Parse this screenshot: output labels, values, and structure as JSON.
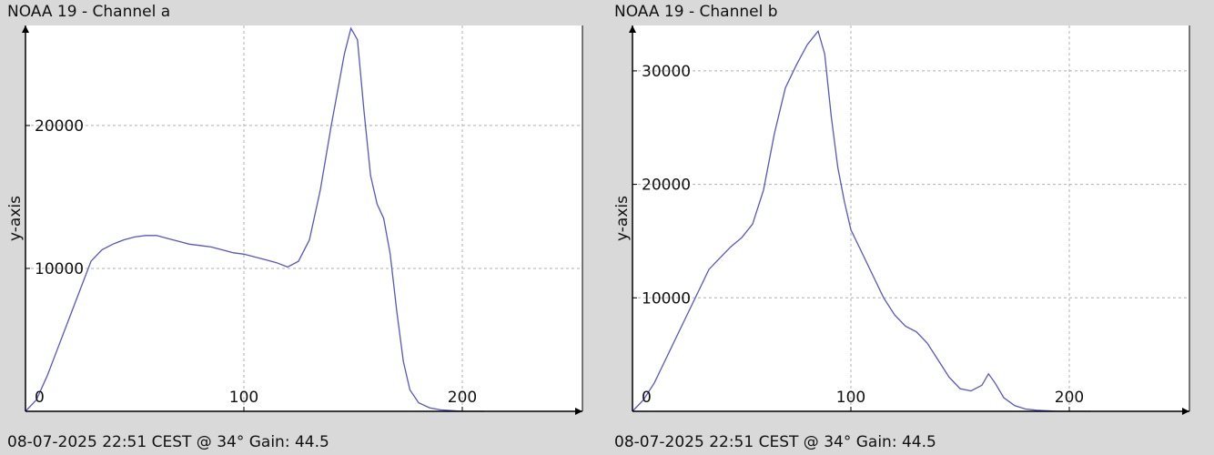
{
  "panels": [
    {
      "title": "NOAA 19 - Channel a",
      "footer": "08-07-2025 22:51 CEST @ 34° Gain: 44.5"
    },
    {
      "title": "NOAA 19 - Channel b",
      "footer": "08-07-2025 22:51 CEST @ 34° Gain: 44.5"
    }
  ],
  "colors": {
    "background": "#d9d9d9",
    "plot_area": "#ffffff",
    "line": "#5555cc",
    "grid": "#b0b0b0",
    "axis": "#000000"
  },
  "chart_data": [
    {
      "type": "line",
      "title": "NOAA 19 - Channel a",
      "xlabel": "",
      "ylabel": "y-axis",
      "xlim": [
        0,
        255
      ],
      "ylim": [
        0,
        27000
      ],
      "xticks": [
        0,
        100,
        200
      ],
      "yticks": [
        10000,
        20000
      ],
      "grid": true,
      "series": [
        {
          "x": [
            0,
            5,
            10,
            15,
            20,
            25,
            30,
            35,
            40,
            45,
            50,
            55,
            60,
            65,
            70,
            75,
            80,
            85,
            90,
            95,
            100,
            105,
            110,
            115,
            120,
            125,
            130,
            135,
            140,
            143,
            146,
            149,
            152,
            155,
            158,
            161,
            164,
            167,
            170,
            173,
            176,
            180,
            185,
            190,
            195,
            200,
            205,
            210
          ],
          "y": [
            0,
            800,
            2500,
            4500,
            6500,
            8500,
            10500,
            11300,
            11700,
            12000,
            12200,
            12300,
            12300,
            12100,
            11900,
            11700,
            11600,
            11500,
            11300,
            11100,
            11000,
            10800,
            10600,
            10400,
            10100,
            10500,
            12000,
            15500,
            20000,
            22500,
            25000,
            26800,
            26000,
            21000,
            16500,
            14500,
            13500,
            11000,
            7000,
            3500,
            1500,
            600,
            250,
            100,
            50,
            0,
            0,
            0
          ]
        }
      ]
    },
    {
      "type": "line",
      "title": "NOAA 19 - Channel b",
      "xlabel": "",
      "ylabel": "y-axis",
      "xlim": [
        0,
        255
      ],
      "ylim": [
        0,
        34000
      ],
      "xticks": [
        0,
        100,
        200
      ],
      "yticks": [
        10000,
        20000,
        30000
      ],
      "grid": true,
      "series": [
        {
          "x": [
            0,
            5,
            10,
            15,
            20,
            25,
            30,
            35,
            40,
            45,
            50,
            55,
            60,
            65,
            70,
            75,
            80,
            85,
            88,
            91,
            94,
            97,
            100,
            105,
            110,
            115,
            120,
            125,
            130,
            135,
            140,
            145,
            150,
            155,
            160,
            163,
            166,
            170,
            175,
            180,
            185,
            190,
            195,
            200,
            210
          ],
          "y": [
            0,
            1000,
            2500,
            4500,
            6500,
            8500,
            10500,
            12500,
            13500,
            14500,
            15300,
            16500,
            19500,
            24500,
            28500,
            30500,
            32300,
            33500,
            31500,
            26000,
            21500,
            18500,
            16000,
            14000,
            12000,
            10000,
            8500,
            7500,
            7000,
            6000,
            4500,
            3000,
            2000,
            1800,
            2300,
            3300,
            2500,
            1200,
            500,
            200,
            100,
            50,
            0,
            0,
            0
          ]
        }
      ]
    }
  ]
}
